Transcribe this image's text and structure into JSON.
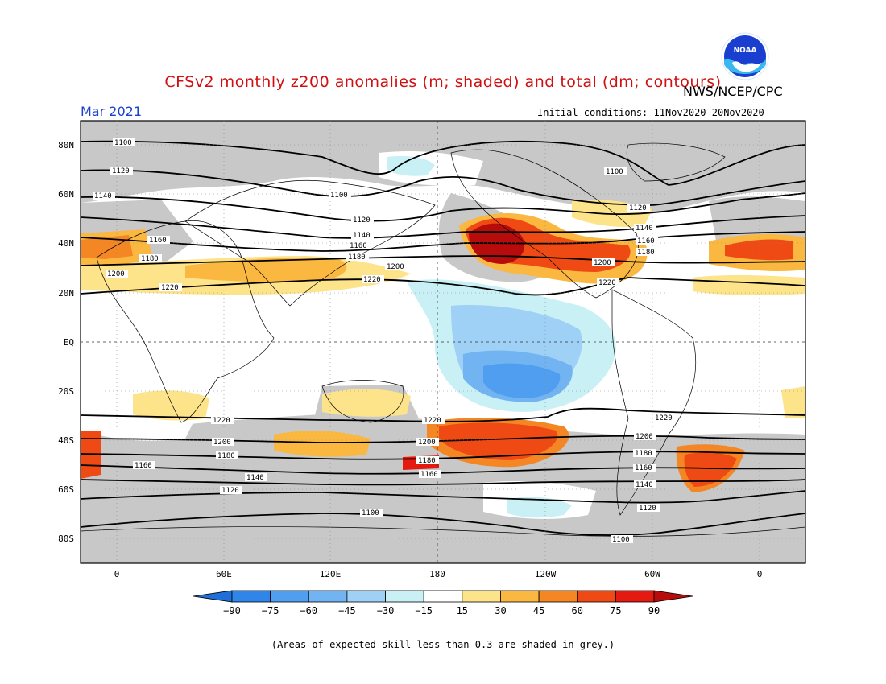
{
  "title": "CFSv2 monthly z200 anomalies (m; shaded) and total (dm; contours)",
  "organization": "NWS/NCEP/CPC",
  "month": "Mar 2021",
  "initial_conditions": "Initial conditions: 11Nov2020–20Nov2020",
  "footnote": "(Areas of expected skill less than 0.3 are shaded in grey.)",
  "logo_text": "NOAA",
  "lat_labels": [
    "80N",
    "60N",
    "40N",
    "20N",
    "EQ",
    "20S",
    "40S",
    "60S",
    "80S"
  ],
  "lon_labels": [
    "0",
    "60E",
    "120E",
    "180",
    "120W",
    "60W",
    "0"
  ],
  "colorbar": {
    "labels": [
      "−90",
      "−75",
      "−60",
      "−45",
      "−30",
      "−15",
      "15",
      "30",
      "45",
      "60",
      "75",
      "90"
    ],
    "colors": [
      "#1e6fd8",
      "#2f86e8",
      "#4f9ef0",
      "#72b4f2",
      "#9fd0f5",
      "#c8f0f5",
      "#ffffff",
      "#fde38a",
      "#fab840",
      "#f48624",
      "#ef4a14",
      "#e41a10",
      "#b80c0c"
    ]
  },
  "contour_labels": {
    "1100": "1100",
    "1120": "1120",
    "1140": "1140",
    "1160": "1160",
    "1180": "1180",
    "1200": "1200",
    "1220": "1220"
  },
  "colors": {
    "title": "#d01010",
    "month": "#1a40d0",
    "grey_skill": "#c8c8c8"
  }
}
